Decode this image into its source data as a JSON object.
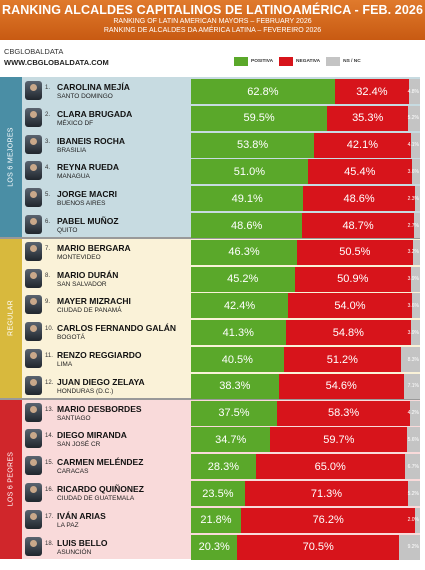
{
  "header": {
    "title": "RANKING ALCALDES CAPITALINOS DE LATINOAMÉRICA - FEB. 2026",
    "subtitle_en": "RANKING OF LATIN AMERICAN MAYORS – FEBRUARY 2026",
    "subtitle_pt": "RANKING DE ALCALDES DA AMÉRICA LATINA – FEVEREIRO 2026"
  },
  "brand": {
    "line1": "CBGLOBALDATA",
    "line2": "WWW.CBGLOBALDATA.COM"
  },
  "legend": [
    {
      "label": "POSITIVA",
      "color": "#5aa82a"
    },
    {
      "label": "NEGATIVA",
      "color": "#d7141b"
    },
    {
      "label": "NS / NC",
      "color": "#c4c4c4"
    }
  ],
  "groups": [
    {
      "label": "LOS 6 MEJORES",
      "label_color": "#4a8ea5",
      "bg_color": "#c7dbe1"
    },
    {
      "label": "REGULAR",
      "label_color": "#d8b93d",
      "bg_color": "#faf2d8"
    },
    {
      "label": "LOS 6 PEORES",
      "label_color": "#d0262b",
      "bg_color": "#f9dada"
    }
  ],
  "chart_data": {
    "type": "bar",
    "stacked": true,
    "orientation": "horizontal",
    "title": "RANKING ALCALDES CAPITALINOS DE LATINOAMÉRICA - FEB. 2026",
    "series_names": [
      "POSITIVA",
      "NEGATIVA",
      "NS / NC"
    ],
    "colors": [
      "#5aa82a",
      "#d7141b",
      "#c4c4c4"
    ],
    "rows": [
      {
        "rank": "1.",
        "name": "CAROLINA MEJÍA",
        "city": "SANTO DOMINGO",
        "positive": 62.8,
        "negative": 32.4,
        "ns": 4.8,
        "pos_label": "62.8%",
        "neg_label": "32.4%",
        "ns_label": "4.8%"
      },
      {
        "rank": "2.",
        "name": "CLARA BRUGADA",
        "city": "MÉXICO DF",
        "positive": 59.5,
        "negative": 35.3,
        "ns": 5.2,
        "pos_label": "59.5%",
        "neg_label": "35.3%",
        "ns_label": "5.2%"
      },
      {
        "rank": "3.",
        "name": "IBANEIS ROCHA",
        "city": "BRASILIA",
        "positive": 53.8,
        "negative": 42.1,
        "ns": 4.1,
        "pos_label": "53.8%",
        "neg_label": "42.1%",
        "ns_label": "4.1%"
      },
      {
        "rank": "4.",
        "name": "REYNA RUEDA",
        "city": "MANAGUA",
        "positive": 51.0,
        "negative": 45.4,
        "ns": 3.6,
        "pos_label": "51.0%",
        "neg_label": "45.4%",
        "ns_label": "3.6%"
      },
      {
        "rank": "5.",
        "name": "JORGE MACRI",
        "city": "BUENOS AIRES",
        "positive": 49.1,
        "negative": 48.6,
        "ns": 2.3,
        "pos_label": "49.1%",
        "neg_label": "48.6%",
        "ns_label": "2.3%"
      },
      {
        "rank": "6.",
        "name": "PABEL MUÑOZ",
        "city": "QUITO",
        "positive": 48.6,
        "negative": 48.7,
        "ns": 2.7,
        "pos_label": "48.6%",
        "neg_label": "48.7%",
        "ns_label": "2.7%"
      },
      {
        "rank": "7.",
        "name": "MARIO BERGARA",
        "city": "MONTEVIDEO",
        "positive": 46.3,
        "negative": 50.5,
        "ns": 3.2,
        "pos_label": "46.3%",
        "neg_label": "50.5%",
        "ns_label": "3.2%"
      },
      {
        "rank": "8.",
        "name": "MARIO DURÁN",
        "city": "SAN SALVADOR",
        "positive": 45.2,
        "negative": 50.9,
        "ns": 3.9,
        "pos_label": "45.2%",
        "neg_label": "50.9%",
        "ns_label": "3.9%"
      },
      {
        "rank": "9.",
        "name": "MAYER MIZRACHI",
        "city": "CIUDAD DE PANAMÁ",
        "positive": 42.4,
        "negative": 54.0,
        "ns": 3.6,
        "pos_label": "42.4%",
        "neg_label": "54.0%",
        "ns_label": "3.6%"
      },
      {
        "rank": "10.",
        "name": "CARLOS FERNANDO GALÁN",
        "city": "BOGOTÁ",
        "positive": 41.3,
        "negative": 54.8,
        "ns": 3.9,
        "pos_label": "41.3%",
        "neg_label": "54.8%",
        "ns_label": "3.9%"
      },
      {
        "rank": "11.",
        "name": "RENZO REGGIARDO",
        "city": "LIMA",
        "positive": 40.5,
        "negative": 51.2,
        "ns": 8.3,
        "pos_label": "40.5%",
        "neg_label": "51.2%",
        "ns_label": "8.3%"
      },
      {
        "rank": "12.",
        "name": "JUAN DIEGO ZELAYA",
        "city": "HONDURAS (D.C.)",
        "positive": 38.3,
        "negative": 54.6,
        "ns": 7.1,
        "pos_label": "38.3%",
        "neg_label": "54.6%",
        "ns_label": "7.1%"
      },
      {
        "rank": "13.",
        "name": "MARIO DESBORDES",
        "city": "SANTIAGO",
        "positive": 37.5,
        "negative": 58.3,
        "ns": 4.2,
        "pos_label": "37.5%",
        "neg_label": "58.3%",
        "ns_label": "4.2%"
      },
      {
        "rank": "14.",
        "name": "DIEGO MIRANDA",
        "city": "SAN JOSÉ CR",
        "positive": 34.7,
        "negative": 59.7,
        "ns": 5.6,
        "pos_label": "34.7%",
        "neg_label": "59.7%",
        "ns_label": "5.6%"
      },
      {
        "rank": "15.",
        "name": "CARMEN MELÉNDEZ",
        "city": "CARACAS",
        "positive": 28.3,
        "negative": 65.0,
        "ns": 6.7,
        "pos_label": "28.3%",
        "neg_label": "65.0%",
        "ns_label": "6.7%"
      },
      {
        "rank": "16.",
        "name": "RICARDO QUIÑONEZ",
        "city": "CIUDAD DE GUATEMALA",
        "positive": 23.5,
        "negative": 71.3,
        "ns": 5.2,
        "pos_label": "23.5%",
        "neg_label": "71.3%",
        "ns_label": "5.2%"
      },
      {
        "rank": "17.",
        "name": "IVÁN ARIAS",
        "city": "LA PAZ",
        "positive": 21.8,
        "negative": 76.2,
        "ns": 2.0,
        "pos_label": "21.8%",
        "neg_label": "76.2%",
        "ns_label": "2.0%"
      },
      {
        "rank": "18.",
        "name": "LUIS BELLO",
        "city": "ASUNCIÓN",
        "positive": 20.3,
        "negative": 70.5,
        "ns": 9.2,
        "pos_label": "20.3%",
        "neg_label": "70.5%",
        "ns_label": "9.2%"
      }
    ]
  }
}
